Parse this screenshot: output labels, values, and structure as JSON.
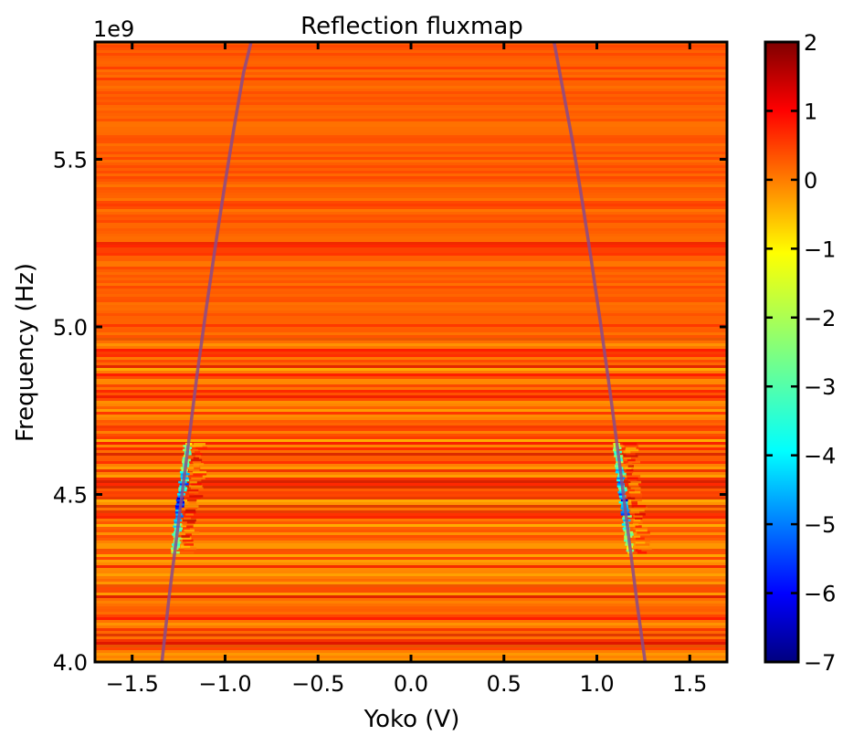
{
  "chart_data": {
    "type": "heatmap",
    "title": "Reflection fluxmap",
    "xlabel": "Yoko (V)",
    "ylabel": "Frequency (Hz)",
    "y_offset_label": "1e9",
    "xlim": [
      -1.7,
      1.7
    ],
    "ylim": [
      4.0,
      5.85
    ],
    "x_ticks": [
      -1.5,
      -1.0,
      -0.5,
      0.0,
      0.5,
      1.0,
      1.5
    ],
    "x_tick_labels": [
      "−1.5",
      "−1.0",
      "−0.5",
      "0.0",
      "0.5",
      "1.0",
      "1.5"
    ],
    "y_ticks": [
      4.0,
      4.5,
      5.0,
      5.5
    ],
    "y_tick_labels": [
      "4.0",
      "4.5",
      "5.0",
      "5.5"
    ],
    "colorbar": {
      "range": [
        -7,
        2
      ],
      "ticks": [
        2,
        1,
        0,
        -1,
        -2,
        -3,
        -4,
        -5,
        -6,
        -7
      ],
      "tick_labels": [
        "2",
        "1",
        "0",
        "−1",
        "−2",
        "−3",
        "−4",
        "−5",
        "−6",
        "−7"
      ],
      "colormap": "jet"
    },
    "background_value": 0.3,
    "features": [
      {
        "kind": "band",
        "y": [
          5.21,
          5.26
        ],
        "value": 0.8
      },
      {
        "kind": "noise-region",
        "y": [
          4.0,
          4.97
        ],
        "amplitude": 1.0
      },
      {
        "kind": "resonance-dip",
        "x_center": -1.23,
        "y": [
          4.33,
          4.66
        ],
        "min_value": -6
      },
      {
        "kind": "resonance-dip",
        "x_center": 1.17,
        "y": [
          4.33,
          4.66
        ],
        "min_value": -6
      }
    ],
    "series": [
      {
        "style": "fit-curve",
        "color": "#8a4a8a",
        "x": [
          -1.34,
          -1.3,
          -1.25,
          -1.2,
          -1.15,
          -1.1,
          -1.05,
          -1.0,
          -0.95,
          -0.9,
          -0.86
        ],
        "y": [
          4.0,
          4.2,
          4.42,
          4.64,
          4.86,
          5.06,
          5.25,
          5.43,
          5.6,
          5.76,
          5.85
        ]
      },
      {
        "style": "fit-curve",
        "color": "#8a4a8a",
        "x": [
          0.77,
          0.82,
          0.87,
          0.92,
          0.97,
          1.02,
          1.07,
          1.12,
          1.17,
          1.22,
          1.26
        ],
        "y": [
          5.85,
          5.7,
          5.55,
          5.38,
          5.2,
          5.01,
          4.81,
          4.6,
          4.38,
          4.16,
          4.0
        ]
      }
    ]
  }
}
